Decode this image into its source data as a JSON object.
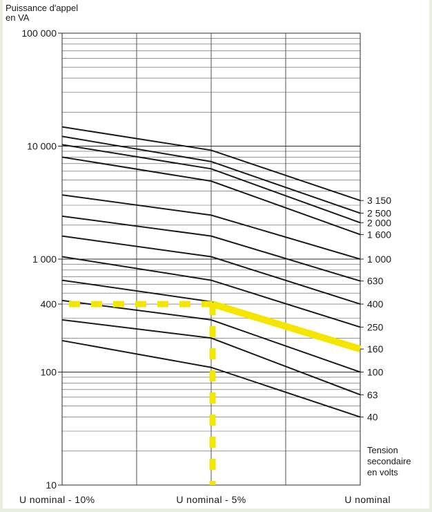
{
  "chart_data": {
    "type": "line",
    "y_title": [
      "Puissance d'appel",
      "en VA"
    ],
    "right_title": [
      "Tension",
      "secondaire",
      "en volts"
    ],
    "x": [
      "U nominal - 10%",
      "U nominal - 5%",
      "U nominal"
    ],
    "y_scale": "log",
    "ylim": [
      10,
      100000
    ],
    "y_ticks": [
      {
        "value": 100000,
        "label": "100 000"
      },
      {
        "value": 10000,
        "label": "10 000"
      },
      {
        "value": 1000,
        "label": "1 000"
      },
      {
        "value": 400,
        "label": "400"
      },
      {
        "value": 100,
        "label": "100"
      },
      {
        "value": 10,
        "label": "10"
      }
    ],
    "grid": true,
    "series": [
      {
        "name": "3 150",
        "values": [
          14800,
          9200,
          3300
        ]
      },
      {
        "name": "2 500",
        "values": [
          12200,
          7300,
          2550
        ]
      },
      {
        "name": "2 000",
        "values": [
          10300,
          6300,
          2100
        ]
      },
      {
        "name": "1 600",
        "values": [
          8000,
          4900,
          1650
        ]
      },
      {
        "name": "1 000",
        "values": [
          3700,
          2450,
          1000
        ]
      },
      {
        "name": "630",
        "values": [
          2400,
          1600,
          640
        ]
      },
      {
        "name": "400",
        "values": [
          1600,
          1050,
          400
        ]
      },
      {
        "name": "250",
        "values": [
          1050,
          650,
          250
        ]
      },
      {
        "name": "160",
        "values": [
          650,
          420,
          160
        ]
      },
      {
        "name": "100",
        "values": [
          430,
          290,
          100
        ]
      },
      {
        "name": "63",
        "values": [
          290,
          200,
          63
        ]
      },
      {
        "name": "40",
        "values": [
          190,
          110,
          40
        ]
      }
    ],
    "highlight": {
      "color": "#f5e600",
      "level": 400,
      "x": "U nominal - 5%",
      "curve_values": [
        400,
        160
      ]
    }
  }
}
